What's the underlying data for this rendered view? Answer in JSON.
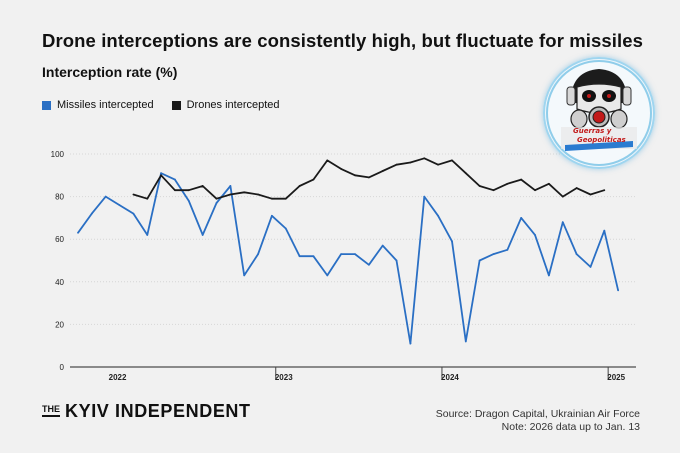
{
  "title": "Drone interceptions are consistently high, but fluctuate for missiles",
  "subtitle": "Interception rate (%)",
  "legend": {
    "missiles": "Missiles intercepted",
    "drones": "Drones intercepted"
  },
  "colors": {
    "missiles": "#2a6fc4",
    "drones": "#1a1a1a",
    "background": "#f1f1f1"
  },
  "brand": {
    "the": "THE",
    "name": "KYIV INDEPENDENT"
  },
  "source": {
    "line1": "Source: Dragon Capital, Ukrainian Air Force",
    "line2": "Note: 2026 data up to Jan. 13"
  },
  "logo": {
    "icon": "gas-mask-skull-logo-icon",
    "text_line1": "Guerras y",
    "text_line2": "Geopoliticas"
  },
  "chart_data": {
    "type": "line",
    "x_start": "2022-01",
    "x_end": "2026-01",
    "x_ticks": [
      {
        "label": "2022",
        "x": "2022-01"
      },
      {
        "label": "2023",
        "x": "2023-01"
      },
      {
        "label": "2024",
        "x": "2024-01"
      },
      {
        "label": "2025",
        "x": "2025-01"
      }
    ],
    "year_separators": [
      "2023-01",
      "2024-01",
      "2025-01",
      "2026-01"
    ],
    "ylim": [
      0,
      100
    ],
    "yticks": [
      0,
      20,
      40,
      60,
      80,
      100
    ],
    "grid": true,
    "legend_position": "top-left",
    "series": [
      {
        "name": "Missiles intercepted",
        "key": "missiles",
        "points": [
          [
            "2021-10",
            63
          ],
          [
            "2021-11",
            72
          ],
          [
            "2021-12",
            80
          ],
          [
            "2022-01",
            76
          ],
          [
            "2022-02",
            72
          ],
          [
            "2022-03",
            62
          ],
          [
            "2022-04",
            91
          ],
          [
            "2022-05",
            88
          ],
          [
            "2022-06",
            78
          ],
          [
            "2022-07",
            62
          ],
          [
            "2022-08",
            77
          ],
          [
            "2022-09",
            85
          ],
          [
            "2022-10",
            43
          ],
          [
            "2022-11",
            53
          ],
          [
            "2022-12",
            71
          ],
          [
            "2023-01",
            65
          ],
          [
            "2023-02",
            52
          ],
          [
            "2023-03",
            52
          ],
          [
            "2023-04",
            43
          ],
          [
            "2023-05",
            53
          ],
          [
            "2023-06",
            53
          ],
          [
            "2023-07",
            48
          ],
          [
            "2023-08",
            57
          ],
          [
            "2023-09",
            50
          ],
          [
            "2023-10",
            11
          ],
          [
            "2023-11",
            80
          ],
          [
            "2023-12",
            71
          ],
          [
            "2024-01",
            59
          ],
          [
            "2024-02",
            12
          ],
          [
            "2024-03",
            50
          ],
          [
            "2024-04",
            53
          ],
          [
            "2024-05",
            55
          ],
          [
            "2024-06",
            70
          ],
          [
            "2024-07",
            62
          ],
          [
            "2024-08",
            43
          ],
          [
            "2024-09",
            68
          ],
          [
            "2024-10",
            53
          ],
          [
            "2024-11",
            47
          ],
          [
            "2024-12",
            64
          ],
          [
            "2025-01",
            36
          ]
        ]
      },
      {
        "name": "Drones intercepted",
        "key": "drones",
        "points": [
          [
            "2022-02",
            81
          ],
          [
            "2022-03",
            79
          ],
          [
            "2022-04",
            90
          ],
          [
            "2022-05",
            83
          ],
          [
            "2022-06",
            83
          ],
          [
            "2022-07",
            85
          ],
          [
            "2022-08",
            79
          ],
          [
            "2022-09",
            81
          ],
          [
            "2022-10",
            82
          ],
          [
            "2022-11",
            81
          ],
          [
            "2022-12",
            79
          ],
          [
            "2023-01",
            79
          ],
          [
            "2023-02",
            85
          ],
          [
            "2023-03",
            88
          ],
          [
            "2023-04",
            97
          ],
          [
            "2023-05",
            93
          ],
          [
            "2023-06",
            90
          ],
          [
            "2023-07",
            89
          ],
          [
            "2023-08",
            92
          ],
          [
            "2023-09",
            95
          ],
          [
            "2023-10",
            96
          ],
          [
            "2023-11",
            98
          ],
          [
            "2023-12",
            95
          ],
          [
            "2024-01",
            97
          ],
          [
            "2024-02",
            91
          ],
          [
            "2024-03",
            85
          ],
          [
            "2024-04",
            83
          ],
          [
            "2024-05",
            86
          ],
          [
            "2024-06",
            88
          ],
          [
            "2024-07",
            83
          ],
          [
            "2024-08",
            86
          ],
          [
            "2024-09",
            80
          ],
          [
            "2024-10",
            84
          ],
          [
            "2024-11",
            81
          ],
          [
            "2024-12",
            83
          ]
        ]
      }
    ]
  }
}
